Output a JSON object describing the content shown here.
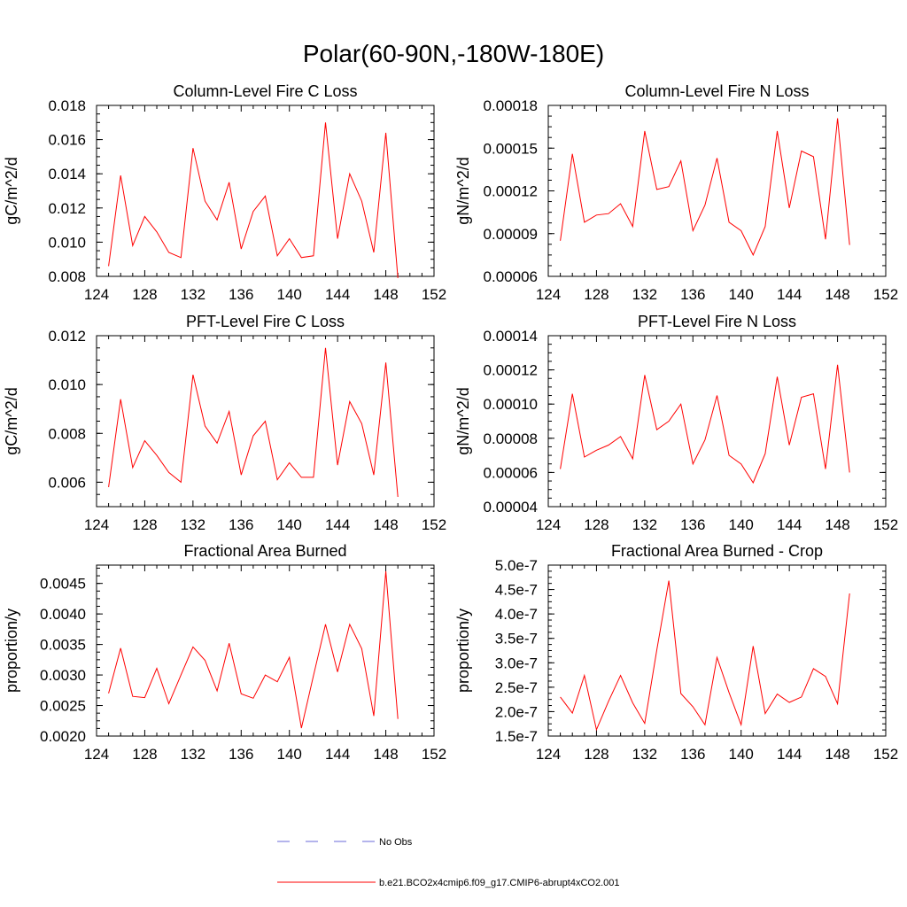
{
  "figure_title": "Polar(60-90N,-180W-180E)",
  "legend": [
    {
      "label": "No Obs",
      "color": "#6a6ad8",
      "dash": "dashed"
    },
    {
      "label": "b.e21.BCO2x4cmip6.f09_g17.CMIP6-abrupt4xCO2.001",
      "color": "#ff0000",
      "dash": "solid"
    }
  ],
  "series_color": "#ff0000",
  "chart_data": [
    {
      "type": "line",
      "title": "Column-Level Fire C Loss",
      "ylabel": "gC/m^2/d",
      "xlim": [
        124,
        152
      ],
      "ylim": [
        0.008,
        0.018
      ],
      "xticks": [
        124,
        128,
        132,
        136,
        140,
        144,
        148,
        152
      ],
      "yticks": [
        "0.008",
        "0.010",
        "0.012",
        "0.014",
        "0.016",
        "0.018"
      ],
      "x": [
        125,
        126,
        127,
        128,
        129,
        130,
        131,
        132,
        133,
        134,
        135,
        136,
        137,
        138,
        139,
        140,
        141,
        142,
        143,
        144,
        145,
        146,
        147,
        148,
        149
      ],
      "series": [
        {
          "name": "b.e21.BCO2x4cmip6.f09_g17.CMIP6-abrupt4xCO2.001",
          "values": [
            0.0086,
            0.0139,
            0.0098,
            0.0115,
            0.0106,
            0.0094,
            0.0091,
            0.0155,
            0.0124,
            0.0113,
            0.0135,
            0.0096,
            0.0118,
            0.0127,
            0.0092,
            0.0102,
            0.0091,
            0.0092,
            0.017,
            0.0102,
            0.014,
            0.0124,
            0.0094,
            0.0164,
            0.0079
          ]
        }
      ]
    },
    {
      "type": "line",
      "title": "Column-Level Fire N Loss",
      "ylabel": "gN/m^2/d",
      "xlim": [
        124,
        152
      ],
      "ylim": [
        6e-05,
        0.00018
      ],
      "xticks": [
        124,
        128,
        132,
        136,
        140,
        144,
        148,
        152
      ],
      "yticks": [
        "0.00006",
        "0.00009",
        "0.00012",
        "0.00015",
        "0.00018"
      ],
      "x": [
        125,
        126,
        127,
        128,
        129,
        130,
        131,
        132,
        133,
        134,
        135,
        136,
        137,
        138,
        139,
        140,
        141,
        142,
        143,
        144,
        145,
        146,
        147,
        148,
        149
      ],
      "series": [
        {
          "name": "b.e21.BCO2x4cmip6.f09_g17.CMIP6-abrupt4xCO2.001",
          "values": [
            8.5e-05,
            0.000146,
            9.8e-05,
            0.000103,
            0.000104,
            0.000111,
            9.5e-05,
            0.000162,
            0.000121,
            0.000123,
            0.000141,
            9.2e-05,
            0.00011,
            0.000143,
            9.8e-05,
            9.2e-05,
            7.5e-05,
            9.5e-05,
            0.000162,
            0.000108,
            0.000148,
            0.000144,
            8.6e-05,
            0.000171,
            8.2e-05
          ]
        }
      ]
    },
    {
      "type": "line",
      "title": "PFT-Level Fire C Loss",
      "ylabel": "gC/m^2/d",
      "xlim": [
        124,
        152
      ],
      "ylim": [
        0.005,
        0.012
      ],
      "xticks": [
        124,
        128,
        132,
        136,
        140,
        144,
        148,
        152
      ],
      "yticks": [
        "0.006",
        "0.008",
        "0.010",
        "0.012"
      ],
      "ytick_values": [
        0.006,
        0.008,
        0.01,
        0.012
      ],
      "x": [
        125,
        126,
        127,
        128,
        129,
        130,
        131,
        132,
        133,
        134,
        135,
        136,
        137,
        138,
        139,
        140,
        141,
        142,
        143,
        144,
        145,
        146,
        147,
        148,
        149
      ],
      "series": [
        {
          "name": "b.e21.BCO2x4cmip6.f09_g17.CMIP6-abrupt4xCO2.001",
          "values": [
            0.0058,
            0.0094,
            0.0066,
            0.0077,
            0.0071,
            0.0064,
            0.006,
            0.0104,
            0.0083,
            0.0076,
            0.0089,
            0.0063,
            0.0079,
            0.0085,
            0.0061,
            0.0068,
            0.0062,
            0.0062,
            0.0115,
            0.0067,
            0.0093,
            0.0084,
            0.0063,
            0.0109,
            0.0054
          ]
        }
      ]
    },
    {
      "type": "line",
      "title": "PFT-Level Fire N Loss",
      "ylabel": "gN/m^2/d",
      "xlim": [
        124,
        152
      ],
      "ylim": [
        4e-05,
        0.00014
      ],
      "xticks": [
        124,
        128,
        132,
        136,
        140,
        144,
        148,
        152
      ],
      "yticks": [
        "0.00004",
        "0.00006",
        "0.00008",
        "0.00010",
        "0.00012",
        "0.00014"
      ],
      "x": [
        125,
        126,
        127,
        128,
        129,
        130,
        131,
        132,
        133,
        134,
        135,
        136,
        137,
        138,
        139,
        140,
        141,
        142,
        143,
        144,
        145,
        146,
        147,
        148,
        149
      ],
      "series": [
        {
          "name": "b.e21.BCO2x4cmip6.f09_g17.CMIP6-abrupt4xCO2.001",
          "values": [
            6.2e-05,
            0.000106,
            6.9e-05,
            7.3e-05,
            7.6e-05,
            8.1e-05,
            6.8e-05,
            0.000117,
            8.5e-05,
            9e-05,
            0.0001,
            6.5e-05,
            7.9e-05,
            0.000105,
            7e-05,
            6.5e-05,
            5.4e-05,
            7.1e-05,
            0.000116,
            7.6e-05,
            0.000104,
            0.000106,
            6.2e-05,
            0.000123,
            6e-05
          ]
        }
      ]
    },
    {
      "type": "line",
      "title": "Fractional Area Burned",
      "ylabel": "proportion/y",
      "xlim": [
        124,
        152
      ],
      "ylim": [
        0.002,
        0.0048
      ],
      "xticks": [
        124,
        128,
        132,
        136,
        140,
        144,
        148,
        152
      ],
      "yticks": [
        "0.0020",
        "0.0025",
        "0.0030",
        "0.0035",
        "0.0040",
        "0.0045"
      ],
      "ytick_values": [
        0.002,
        0.0025,
        0.003,
        0.0035,
        0.004,
        0.0045
      ],
      "x": [
        125,
        126,
        127,
        128,
        129,
        130,
        131,
        132,
        133,
        134,
        135,
        136,
        137,
        138,
        139,
        140,
        141,
        142,
        143,
        144,
        145,
        146,
        147,
        148,
        149
      ],
      "series": [
        {
          "name": "b.e21.BCO2x4cmip6.f09_g17.CMIP6-abrupt4xCO2.001",
          "values": [
            0.0027,
            0.00344,
            0.00265,
            0.00263,
            0.00311,
            0.00253,
            0.003,
            0.00346,
            0.00324,
            0.00274,
            0.00352,
            0.00269,
            0.00262,
            0.003,
            0.00289,
            0.00329,
            0.00213,
            0.00299,
            0.00383,
            0.00305,
            0.00383,
            0.00343,
            0.00233,
            0.0047,
            0.00228
          ]
        }
      ]
    },
    {
      "type": "line",
      "title": "Fractional Area Burned - Crop",
      "ylabel": "proportion/y",
      "xlim": [
        124,
        152
      ],
      "ylim": [
        1.5e-07,
        5e-07
      ],
      "xticks": [
        124,
        128,
        132,
        136,
        140,
        144,
        148,
        152
      ],
      "yticks": [
        "1.5e-7",
        "2.0e-7",
        "2.5e-7",
        "3.0e-7",
        "3.5e-7",
        "4.0e-7",
        "4.5e-7",
        "5.0e-7"
      ],
      "ytick_values": [
        1.5e-07,
        2e-07,
        2.5e-07,
        3e-07,
        3.5e-07,
        4e-07,
        4.5e-07,
        5e-07
      ],
      "x": [
        125,
        126,
        127,
        128,
        129,
        130,
        131,
        132,
        133,
        134,
        135,
        136,
        137,
        138,
        139,
        140,
        141,
        142,
        143,
        144,
        145,
        146,
        147,
        148,
        149
      ],
      "series": [
        {
          "name": "b.e21.BCO2x4cmip6.f09_g17.CMIP6-abrupt4xCO2.001",
          "values": [
            2.3e-07,
            1.97e-07,
            2.74e-07,
            1.63e-07,
            2.21e-07,
            2.74e-07,
            2.18e-07,
            1.76e-07,
            3.26e-07,
            4.68e-07,
            2.37e-07,
            2.1e-07,
            1.73e-07,
            3.11e-07,
            2.39e-07,
            1.73e-07,
            3.34e-07,
            1.96e-07,
            2.36e-07,
            2.19e-07,
            2.3e-07,
            2.88e-07,
            2.72e-07,
            2.16e-07,
            4.42e-07
          ]
        }
      ]
    }
  ]
}
